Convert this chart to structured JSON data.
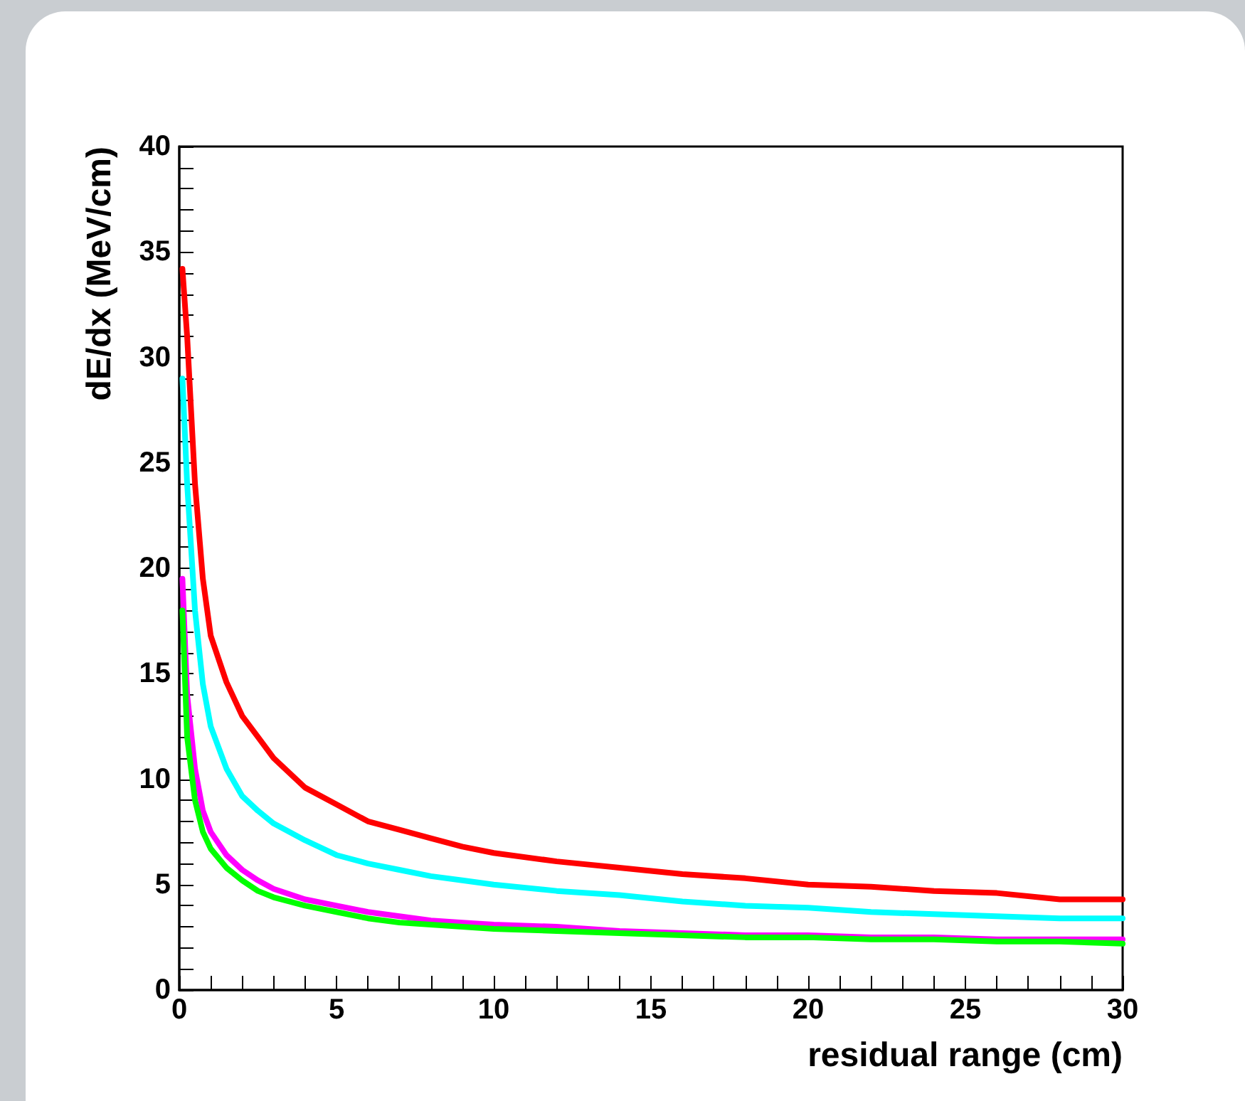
{
  "chart_data": {
    "type": "line",
    "xlabel": "residual range (cm)",
    "ylabel": "dE/dx (MeV/cm)",
    "x": [
      0.1,
      0.25,
      0.5,
      0.75,
      1,
      1.5,
      2,
      2.5,
      3,
      4,
      5,
      6,
      7,
      8,
      9,
      10,
      12,
      14,
      16,
      18,
      20,
      22,
      24,
      26,
      28,
      30
    ],
    "series": [
      {
        "color": "#ff0000",
        "values": [
          34.2,
          31,
          24,
          19.5,
          16.8,
          14.6,
          13,
          12,
          11,
          9.6,
          8.8,
          8,
          7.6,
          7.2,
          6.8,
          6.5,
          6.1,
          5.8,
          5.5,
          5.3,
          5.0,
          4.9,
          4.7,
          4.6,
          4.3,
          4.3
        ]
      },
      {
        "color": "#00ffff",
        "values": [
          29,
          24,
          18,
          14.5,
          12.5,
          10.5,
          9.2,
          8.5,
          7.9,
          7.1,
          6.4,
          6.0,
          5.7,
          5.4,
          5.2,
          5.0,
          4.7,
          4.5,
          4.2,
          4.0,
          3.9,
          3.7,
          3.6,
          3.5,
          3.4,
          3.4
        ]
      },
      {
        "color": "#ff00ff",
        "values": [
          19.5,
          14,
          10.5,
          8.5,
          7.5,
          6.4,
          5.7,
          5.2,
          4.8,
          4.3,
          4.0,
          3.7,
          3.5,
          3.3,
          3.2,
          3.1,
          3.0,
          2.8,
          2.7,
          2.6,
          2.6,
          2.5,
          2.5,
          2.4,
          2.4,
          2.4
        ]
      },
      {
        "color": "#00ff00",
        "values": [
          18,
          12,
          9,
          7.5,
          6.7,
          5.8,
          5.2,
          4.7,
          4.4,
          4.0,
          3.7,
          3.4,
          3.2,
          3.1,
          3.0,
          2.9,
          2.8,
          2.7,
          2.6,
          2.5,
          2.5,
          2.4,
          2.4,
          2.3,
          2.3,
          2.2
        ]
      }
    ],
    "xlim": [
      0,
      30
    ],
    "xticks": [
      0,
      {
        "value": 1,
        "label": null
      },
      {
        "value": 2,
        "label": null
      },
      {
        "value": 3,
        "label": null
      },
      {
        "value": 4,
        "label": null
      },
      5,
      {
        "value": 6,
        "label": null
      },
      {
        "value": 7,
        "label": null
      },
      {
        "value": 8,
        "label": null
      },
      {
        "value": 9,
        "label": null
      },
      10,
      {
        "value": 11,
        "label": null
      },
      {
        "value": 12,
        "label": null
      },
      {
        "value": 13,
        "label": null
      },
      {
        "value": 14,
        "label": null
      },
      15,
      {
        "value": 16,
        "label": null
      },
      {
        "value": 17,
        "label": null
      },
      {
        "value": 18,
        "label": null
      },
      {
        "value": 19,
        "label": null
      },
      20,
      {
        "value": 21,
        "label": null
      },
      {
        "value": 22,
        "label": null
      },
      {
        "value": 23,
        "label": null
      },
      {
        "value": 24,
        "label": null
      },
      25,
      {
        "value": 26,
        "label": null
      },
      {
        "value": 27,
        "label": null
      },
      {
        "value": 28,
        "label": null
      },
      {
        "value": 29,
        "label": null
      },
      30
    ],
    "ylim": [
      0,
      40
    ],
    "yticks": [
      0,
      {
        "value": 1,
        "label": null
      },
      {
        "value": 2,
        "label": null
      },
      {
        "value": 3,
        "label": null
      },
      {
        "value": 4,
        "label": null
      },
      5,
      {
        "value": 6,
        "label": null
      },
      {
        "value": 7,
        "label": null
      },
      {
        "value": 8,
        "label": null
      },
      {
        "value": 9,
        "label": null
      },
      10,
      {
        "value": 11,
        "label": null
      },
      {
        "value": 12,
        "label": null
      },
      {
        "value": 13,
        "label": null
      },
      {
        "value": 14,
        "label": null
      },
      15,
      {
        "value": 16,
        "label": null
      },
      {
        "value": 17,
        "label": null
      },
      {
        "value": 18,
        "label": null
      },
      {
        "value": 19,
        "label": null
      },
      20,
      {
        "value": 21,
        "label": null
      },
      {
        "value": 22,
        "label": null
      },
      {
        "value": 23,
        "label": null
      },
      {
        "value": 24,
        "label": null
      },
      25,
      {
        "value": 26,
        "label": null
      },
      {
        "value": 27,
        "label": null
      },
      {
        "value": 28,
        "label": null
      },
      {
        "value": 29,
        "label": null
      },
      30,
      {
        "value": 31,
        "label": null
      },
      {
        "value": 32,
        "label": null
      },
      {
        "value": 33,
        "label": null
      },
      {
        "value": 34,
        "label": null
      },
      35,
      {
        "value": 36,
        "label": null
      },
      {
        "value": 37,
        "label": null
      },
      {
        "value": 38,
        "label": null
      },
      {
        "value": 39,
        "label": null
      },
      40
    ],
    "grid": false,
    "marker": "none",
    "line_style": "solid"
  }
}
